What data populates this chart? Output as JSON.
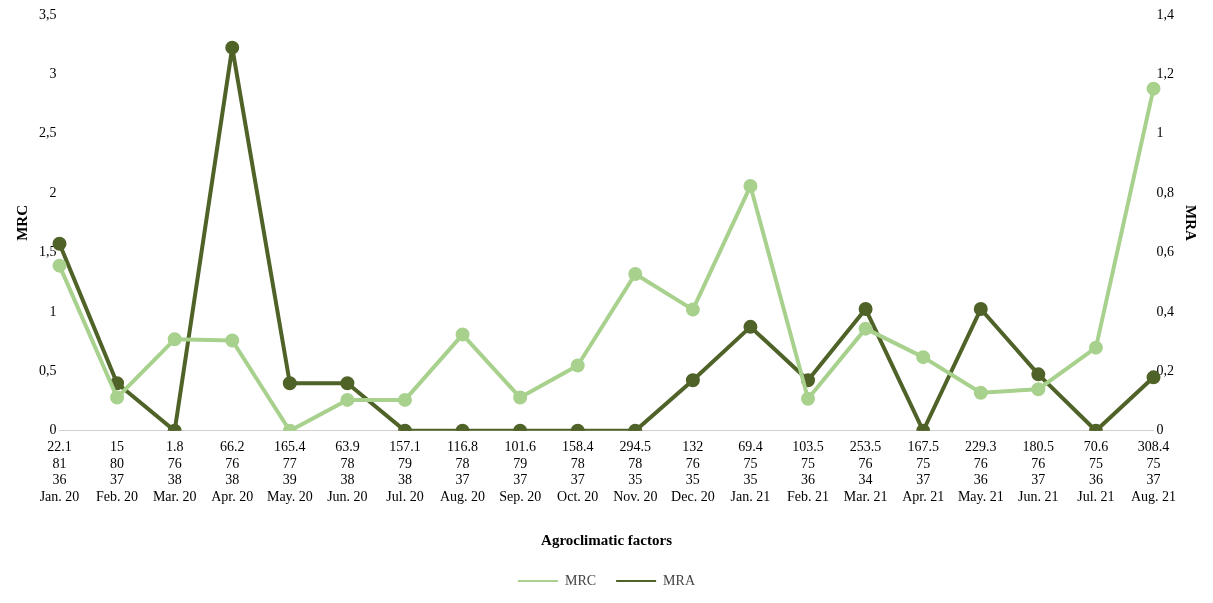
{
  "chart_data": {
    "type": "line",
    "xlabel": "Agroclimatic factors",
    "ylabel": "MRC",
    "y2label": "MRA",
    "categories": [
      "22.1\n81\n36\nJan. 20",
      "15\n80\n37\nFeb. 20",
      "1.8\n76\n38\nMar. 20",
      "66.2\n76\n38\nApr. 20",
      "165.4\n77\n39\nMay. 20",
      "63.9\n78\n38\nJun. 20",
      "157.1\n79\n38\nJul. 20",
      "116.8\n78\n37\nAug. 20",
      "101.6\n79\n37\nSep. 20",
      "158.4\n78\n37\nOct. 20",
      "294.5\n78\n35\nNov. 20",
      "132\n76\n35\nDec. 20",
      "69.4\n75\n35\nJan. 21",
      "103.5\n75\n36\nFeb. 21",
      "253.5\n76\n34\nMar. 21",
      "167.5\n75\n37\nApr. 21",
      "229.3\n76\n36\nMay. 21",
      "180.5\n76\n37\nJun. 21",
      "70.6\n75\n36\nJul. 21",
      "308.4\n75\n37\nAug. 21"
    ],
    "series": [
      {
        "name": "MRC",
        "color": "#a9d18e",
        "values": [
          1.39,
          0.28,
          0.77,
          0.76,
          0,
          0.26,
          0.26,
          0.81,
          0.28,
          0.55,
          1.32,
          1.02,
          2.06,
          0.27,
          0.86,
          0.62,
          0.32,
          0.35,
          0.7,
          2.88
        ]
      },
      {
        "name": "MRA",
        "color": "#4f6228",
        "axis": "y2",
        "values": [
          0.63,
          0.16,
          0,
          1.29,
          0.16,
          0.16,
          0,
          0,
          0,
          0,
          0,
          0.17,
          0.35,
          0.17,
          0.41,
          0,
          0.41,
          0.19,
          0,
          0.18
        ]
      }
    ],
    "ylim": [
      0,
      3.5
    ],
    "yticks": [
      0,
      {
        "value": 0.5,
        "label": "0,5"
      },
      1,
      {
        "value": 1.5,
        "label": "1,5"
      },
      2,
      {
        "value": 2.5,
        "label": "2,5"
      },
      3,
      {
        "value": 3.5,
        "label": "3,5"
      }
    ],
    "y2lim": [
      0,
      1.4
    ],
    "y2ticks": [
      0,
      {
        "value": 0.2,
        "label": "0,2"
      },
      {
        "value": 0.4,
        "label": "0,4"
      },
      {
        "value": 0.6,
        "label": "0,6"
      },
      {
        "value": 0.8,
        "label": "0,8"
      },
      1,
      {
        "value": 1.2,
        "label": "1,2"
      },
      {
        "value": 1.4,
        "label": "1,4"
      }
    ],
    "grid": false,
    "legend": "bottom",
    "marker": "circle",
    "line_style": "solid"
  }
}
